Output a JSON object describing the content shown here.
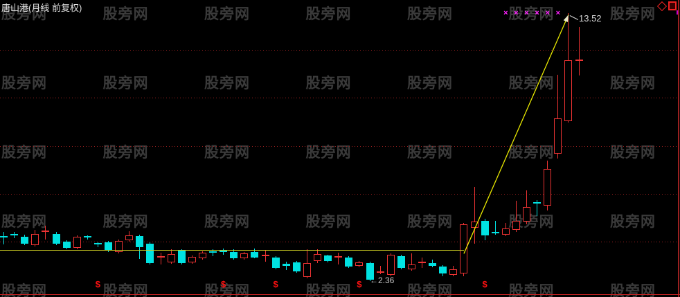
{
  "window": {
    "title": "唐山港(月线 前复权)"
  },
  "watermark": {
    "text": "股旁网",
    "color": "#3a3a3a"
  },
  "labels": {
    "peak": "13.52",
    "low": "←2.36"
  },
  "markers": {
    "dollar": "$",
    "cross": "×",
    "dollar_color": "#ff1111",
    "cross_color": "#ff22ff"
  },
  "icons": {
    "diamond": "diamond-outline",
    "square": "square-outline",
    "color": "#ee2222"
  },
  "chart_data": {
    "type": "candlestick",
    "title": "唐山港(月线 前复权)",
    "symbol": "唐山港",
    "period": "月线 前复权",
    "ylim": [
      2.36,
      13.52
    ],
    "gridline_prices": [
      12,
      10,
      8,
      6,
      4
    ],
    "grid": "dotted-red-horizontal",
    "up_color": "#ee3333",
    "down_color": "#00e2e2",
    "candles": [
      [
        4.19,
        4.41,
        3.89,
        4.15,
        "d"
      ],
      [
        4.3,
        4.41,
        4.15,
        4.26,
        "d"
      ],
      [
        4.21,
        4.3,
        3.86,
        3.92,
        "d"
      ],
      [
        3.86,
        4.5,
        3.81,
        4.33,
        "u"
      ],
      [
        4.39,
        4.67,
        4.1,
        4.44,
        "u"
      ],
      [
        4.33,
        4.39,
        3.86,
        3.92,
        "d"
      ],
      [
        4.01,
        4.07,
        3.69,
        3.75,
        "d"
      ],
      [
        3.75,
        4.27,
        3.69,
        4.21,
        "u"
      ],
      [
        4.19,
        4.27,
        4.1,
        4.16,
        "d"
      ],
      [
        3.9,
        3.98,
        3.78,
        3.86,
        "d"
      ],
      [
        3.98,
        4.04,
        3.57,
        3.63,
        "d"
      ],
      [
        3.57,
        4.1,
        3.52,
        4.04,
        "u"
      ],
      [
        4.07,
        4.44,
        4.01,
        4.27,
        "u"
      ],
      [
        4.24,
        4.3,
        3.29,
        3.78,
        "d"
      ],
      [
        3.92,
        3.98,
        3.05,
        3.11,
        "d"
      ],
      [
        3.33,
        3.55,
        3.05,
        3.36,
        "u"
      ],
      [
        3.14,
        3.69,
        3.08,
        3.49,
        "u"
      ],
      [
        3.63,
        3.69,
        3.05,
        3.11,
        "d"
      ],
      [
        3.14,
        3.43,
        3.08,
        3.37,
        "u"
      ],
      [
        3.31,
        3.6,
        3.26,
        3.55,
        "u"
      ],
      [
        3.56,
        3.69,
        3.4,
        3.53,
        "d"
      ],
      [
        3.6,
        3.72,
        3.46,
        3.56,
        "d"
      ],
      [
        3.57,
        3.69,
        3.26,
        3.31,
        "d"
      ],
      [
        3.31,
        3.57,
        3.26,
        3.52,
        "u"
      ],
      [
        3.57,
        3.72,
        3.31,
        3.34,
        "d"
      ],
      [
        3.4,
        3.63,
        3.17,
        3.43,
        "u"
      ],
      [
        3.34,
        3.4,
        2.85,
        2.91,
        "d"
      ],
      [
        3.08,
        3.17,
        2.82,
        2.99,
        "d"
      ],
      [
        3.14,
        3.2,
        2.7,
        2.76,
        "d"
      ],
      [
        2.53,
        3.69,
        2.47,
        3.11,
        "u"
      ],
      [
        3.2,
        3.69,
        3.11,
        3.49,
        "u"
      ],
      [
        3.43,
        3.46,
        3.14,
        3.2,
        "d"
      ],
      [
        3.34,
        3.55,
        3.05,
        3.37,
        "u"
      ],
      [
        3.34,
        3.4,
        2.91,
        2.97,
        "d"
      ],
      [
        3.0,
        3.2,
        2.94,
        3.14,
        "u"
      ],
      [
        3.11,
        3.17,
        2.36,
        2.42,
        "d"
      ],
      [
        2.71,
        2.99,
        2.65,
        2.74,
        "u"
      ],
      [
        2.62,
        3.52,
        2.56,
        3.46,
        "u"
      ],
      [
        3.4,
        3.46,
        2.85,
        2.91,
        "d"
      ],
      [
        2.85,
        3.52,
        2.79,
        3.05,
        "u"
      ],
      [
        3.08,
        3.34,
        2.91,
        3.12,
        "u"
      ],
      [
        3.11,
        3.26,
        2.94,
        3.0,
        "d"
      ],
      [
        2.97,
        3.02,
        2.56,
        2.68,
        "d"
      ],
      [
        2.62,
        2.99,
        2.56,
        2.85,
        "u"
      ],
      [
        2.68,
        4.79,
        2.56,
        4.73,
        "u"
      ],
      [
        4.59,
        6.29,
        3.92,
        4.85,
        "u"
      ],
      [
        4.88,
        4.94,
        4.07,
        4.27,
        "d"
      ],
      [
        4.38,
        4.88,
        4.3,
        4.35,
        "d"
      ],
      [
        4.3,
        4.79,
        4.24,
        4.56,
        "u"
      ],
      [
        4.5,
        5.71,
        4.41,
        4.88,
        "u"
      ],
      [
        4.85,
        6.15,
        4.73,
        5.45,
        "u"
      ],
      [
        5.62,
        5.74,
        5.08,
        5.58,
        "d"
      ],
      [
        5.51,
        7.39,
        5.31,
        7.04,
        "u"
      ],
      [
        7.68,
        10.95,
        7.48,
        9.15,
        "u"
      ],
      [
        9.04,
        13.52,
        8.98,
        11.58,
        "u"
      ],
      [
        11.53,
        12.94,
        10.92,
        11.56,
        "u"
      ]
    ],
    "candle_format": [
      "open",
      "high",
      "low",
      "close",
      "direction u=up-red d=down-cyan"
    ],
    "dollar_mark_indices": [
      9,
      21,
      26,
      34,
      46
    ],
    "cross_mark_indices": [
      48,
      49,
      50,
      51,
      52,
      53
    ],
    "annotations": {
      "support_line": {
        "price": 3.65,
        "from_index": 0,
        "to_index": 44,
        "color": "#cdcd22"
      },
      "trend_arrow": {
        "from_index": 44,
        "from_price": 3.5,
        "to_index": 54,
        "to_price": 13.46,
        "color": "#e8e800"
      },
      "peak_label": {
        "text": "13.52",
        "price": 13.52,
        "index": 54
      },
      "low_label": {
        "text": "←2.36",
        "price": 2.36,
        "index": 35
      }
    }
  }
}
